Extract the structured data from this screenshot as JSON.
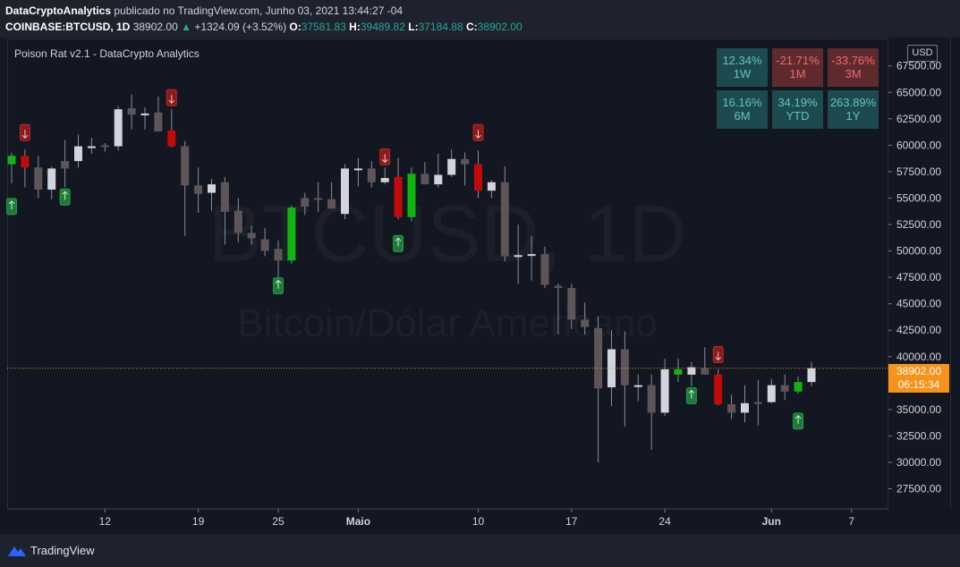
{
  "header": {
    "publisher": "DataCryptoAnalytics",
    "published_text": "publicado no TradingView.com, Junho 03, 2021 13:44:27 -04",
    "symbol": "COINBASE:BTCUSD, 1D",
    "last": "38902.00",
    "change": "+1324.09 (+3.52%)",
    "o_label": "O:",
    "o": "37581.83",
    "h_label": "H:",
    "h": "39489.82",
    "l_label": "L:",
    "l": "37184.88",
    "c_label": "C:",
    "c": "38902.00"
  },
  "indicator_label": "Poison Rat v2.1 - DataCrypto Analytics",
  "currency_button": "USD",
  "watermark": {
    "symbol": "BTCUSD, 1D",
    "description": "Bitcoin/Dólar Americano"
  },
  "performance": [
    {
      "value": "12.34%",
      "period": "1W",
      "sign": "pos"
    },
    {
      "value": "-21.71%",
      "period": "1M",
      "sign": "neg"
    },
    {
      "value": "-33.76%",
      "period": "3M",
      "sign": "neg"
    },
    {
      "value": "16.16%",
      "period": "6M",
      "sign": "pos"
    },
    {
      "value": "34.19%",
      "period": "YTD",
      "sign": "pos"
    },
    {
      "value": "263.89%",
      "period": "1Y",
      "sign": "pos"
    }
  ],
  "last_price_label": {
    "price": "38902.00",
    "countdown": "06:15:34"
  },
  "footer": {
    "brand": "TradingView"
  },
  "colors": {
    "bull": "#d1d4dc",
    "bear": "#5d5558",
    "signal_green": "#11b511",
    "signal_red": "#c20a0a",
    "last_price": "#f7931a",
    "background": "#131722"
  },
  "chart_data": {
    "type": "candlestick",
    "y_ticks": [
      "67500.00",
      "65000.00",
      "62500.00",
      "60000.00",
      "57500.00",
      "55000.00",
      "52500.00",
      "50000.00",
      "47500.00",
      "45000.00",
      "42500.00",
      "40000.00",
      "37500.00",
      "35000.00",
      "32500.00",
      "30000.00",
      "27500.00"
    ],
    "ylim": [
      25600,
      70100
    ],
    "x_ticks": [
      {
        "label": "12",
        "day": 7
      },
      {
        "label": "19",
        "day": 14
      },
      {
        "label": "25",
        "day": 20
      },
      {
        "label": "Maio",
        "day": 26,
        "bold": true
      },
      {
        "label": "10",
        "day": 35
      },
      {
        "label": "17",
        "day": 42
      },
      {
        "label": "24",
        "day": 49
      },
      {
        "label": "Jun",
        "day": 57,
        "bold": true
      },
      {
        "label": "7",
        "day": 63
      }
    ],
    "candles": [
      {
        "o": 58200,
        "h": 59300,
        "l": 56400,
        "c": 59000,
        "k": "g"
      },
      {
        "o": 59000,
        "h": 59600,
        "l": 56000,
        "c": 57900,
        "k": "r"
      },
      {
        "o": 57900,
        "h": 59000,
        "l": 55000,
        "c": 55800,
        "k": "d"
      },
      {
        "o": 55800,
        "h": 58000,
        "l": 54900,
        "c": 57800,
        "k": "u"
      },
      {
        "o": 57800,
        "h": 60500,
        "l": 56000,
        "c": 58500,
        "k": "d"
      },
      {
        "o": 58500,
        "h": 61000,
        "l": 57900,
        "c": 59900,
        "k": "u"
      },
      {
        "o": 59900,
        "h": 60700,
        "l": 59200,
        "c": 59900,
        "k": "u"
      },
      {
        "o": 60000,
        "h": 60200,
        "l": 59400,
        "c": 59900,
        "k": "d"
      },
      {
        "o": 59900,
        "h": 63700,
        "l": 59500,
        "c": 63400,
        "k": "u"
      },
      {
        "o": 63500,
        "h": 64800,
        "l": 61500,
        "c": 62900,
        "k": "d"
      },
      {
        "o": 62900,
        "h": 63600,
        "l": 61500,
        "c": 63000,
        "k": "u"
      },
      {
        "o": 63100,
        "h": 64600,
        "l": 61300,
        "c": 61300,
        "k": "d"
      },
      {
        "o": 61400,
        "h": 63400,
        "l": 59800,
        "c": 59900,
        "k": "r"
      },
      {
        "o": 59900,
        "h": 60400,
        "l": 51400,
        "c": 56200,
        "k": "d"
      },
      {
        "o": 56200,
        "h": 57900,
        "l": 53600,
        "c": 55400,
        "k": "d"
      },
      {
        "o": 55500,
        "h": 56800,
        "l": 53800,
        "c": 56300,
        "k": "u"
      },
      {
        "o": 56500,
        "h": 57000,
        "l": 50600,
        "c": 53700,
        "k": "d"
      },
      {
        "o": 53800,
        "h": 55000,
        "l": 50800,
        "c": 51700,
        "k": "d"
      },
      {
        "o": 51700,
        "h": 52400,
        "l": 50600,
        "c": 51200,
        "k": "d"
      },
      {
        "o": 51100,
        "h": 52200,
        "l": 49500,
        "c": 50000,
        "k": "d"
      },
      {
        "o": 50200,
        "h": 51000,
        "l": 47400,
        "c": 49100,
        "k": "d"
      },
      {
        "o": 49100,
        "h": 54300,
        "l": 48800,
        "c": 54100,
        "k": "g"
      },
      {
        "o": 54200,
        "h": 55500,
        "l": 53400,
        "c": 55000,
        "k": "d"
      },
      {
        "o": 55000,
        "h": 56500,
        "l": 53700,
        "c": 55000,
        "k": "d"
      },
      {
        "o": 54900,
        "h": 56500,
        "l": 54300,
        "c": 54000,
        "k": "d"
      },
      {
        "o": 53500,
        "h": 58200,
        "l": 53000,
        "c": 57800,
        "k": "u"
      },
      {
        "o": 57700,
        "h": 58800,
        "l": 56100,
        "c": 57800,
        "k": "u"
      },
      {
        "o": 57800,
        "h": 58500,
        "l": 56000,
        "c": 56500,
        "k": "d"
      },
      {
        "o": 56500,
        "h": 57900,
        "l": 56300,
        "c": 56900,
        "k": "u"
      },
      {
        "o": 57000,
        "h": 58800,
        "l": 53000,
        "c": 53200,
        "k": "r"
      },
      {
        "o": 53200,
        "h": 57900,
        "l": 52800,
        "c": 57300,
        "k": "g"
      },
      {
        "o": 57300,
        "h": 58400,
        "l": 56500,
        "c": 56300,
        "k": "d"
      },
      {
        "o": 56300,
        "h": 59200,
        "l": 56000,
        "c": 57200,
        "k": "u"
      },
      {
        "o": 57200,
        "h": 59600,
        "l": 57000,
        "c": 58700,
        "k": "u"
      },
      {
        "o": 58700,
        "h": 59300,
        "l": 56200,
        "c": 58200,
        "k": "d"
      },
      {
        "o": 58200,
        "h": 59500,
        "l": 55000,
        "c": 55700,
        "k": "r"
      },
      {
        "o": 55700,
        "h": 56700,
        "l": 55000,
        "c": 56500,
        "k": "u"
      },
      {
        "o": 56500,
        "h": 58000,
        "l": 49000,
        "c": 49500,
        "k": "d"
      },
      {
        "o": 49500,
        "h": 52500,
        "l": 46900,
        "c": 49600,
        "k": "u"
      },
      {
        "o": 49600,
        "h": 51400,
        "l": 47200,
        "c": 49700,
        "k": "u"
      },
      {
        "o": 49700,
        "h": 50400,
        "l": 46500,
        "c": 46800,
        "k": "d"
      },
      {
        "o": 46700,
        "h": 46900,
        "l": 42100,
        "c": 46500,
        "k": "d"
      },
      {
        "o": 46500,
        "h": 46900,
        "l": 42600,
        "c": 43500,
        "k": "d"
      },
      {
        "o": 43500,
        "h": 45100,
        "l": 42100,
        "c": 42800,
        "k": "d"
      },
      {
        "o": 42700,
        "h": 43800,
        "l": 30000,
        "c": 37000,
        "k": "d"
      },
      {
        "o": 37100,
        "h": 42500,
        "l": 35300,
        "c": 40700,
        "k": "u"
      },
      {
        "o": 40700,
        "h": 42400,
        "l": 33400,
        "c": 37300,
        "k": "d"
      },
      {
        "o": 37300,
        "h": 38300,
        "l": 35800,
        "c": 37300,
        "k": "u"
      },
      {
        "o": 37300,
        "h": 38300,
        "l": 31200,
        "c": 34700,
        "k": "d"
      },
      {
        "o": 34700,
        "h": 39800,
        "l": 34400,
        "c": 38800,
        "k": "u"
      },
      {
        "o": 38800,
        "h": 39800,
        "l": 37600,
        "c": 38300,
        "k": "g"
      },
      {
        "o": 38300,
        "h": 39500,
        "l": 37200,
        "c": 39000,
        "k": "u"
      },
      {
        "o": 38900,
        "h": 40900,
        "l": 38300,
        "c": 38300,
        "k": "d"
      },
      {
        "o": 38300,
        "h": 38800,
        "l": 35400,
        "c": 35500,
        "k": "r"
      },
      {
        "o": 35500,
        "h": 36400,
        "l": 34100,
        "c": 34700,
        "k": "d"
      },
      {
        "o": 34700,
        "h": 37300,
        "l": 33800,
        "c": 35600,
        "k": "u"
      },
      {
        "o": 35600,
        "h": 37800,
        "l": 33500,
        "c": 35700,
        "k": "d"
      },
      {
        "o": 35700,
        "h": 37900,
        "l": 35600,
        "c": 37300,
        "k": "u"
      },
      {
        "o": 37300,
        "h": 38300,
        "l": 35900,
        "c": 36700,
        "k": "d"
      },
      {
        "o": 36700,
        "h": 38100,
        "l": 36500,
        "c": 37600,
        "k": "g"
      },
      {
        "o": 37600,
        "h": 39500,
        "l": 37200,
        "c": 38900,
        "k": "u"
      }
    ],
    "signals": [
      {
        "day": 0,
        "dir": "up",
        "price": 54200
      },
      {
        "day": 1,
        "dir": "down",
        "price": 61200
      },
      {
        "day": 4,
        "dir": "up",
        "price": 55100
      },
      {
        "day": 12,
        "dir": "down",
        "price": 64500
      },
      {
        "day": 20,
        "dir": "up",
        "price": 46700
      },
      {
        "day": 28,
        "dir": "down",
        "price": 58900
      },
      {
        "day": 29,
        "dir": "up",
        "price": 50700
      },
      {
        "day": 35,
        "dir": "down",
        "price": 61200
      },
      {
        "day": 51,
        "dir": "up",
        "price": 36300
      },
      {
        "day": 53,
        "dir": "down",
        "price": 40200
      },
      {
        "day": 59,
        "dir": "up",
        "price": 33900
      }
    ],
    "last_price": 38902.0
  }
}
